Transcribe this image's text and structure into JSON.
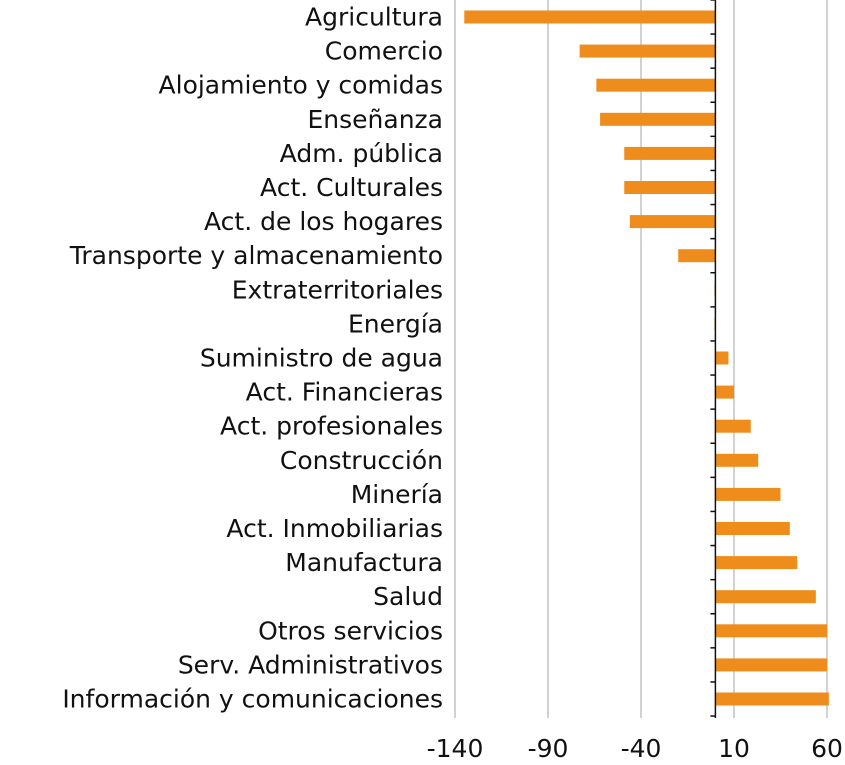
{
  "chart_data": {
    "type": "bar",
    "orientation": "horizontal",
    "title": "",
    "xlabel": "",
    "ylabel": "",
    "xlim": [
      -140,
      60
    ],
    "xticks": [
      -140,
      -90,
      -40,
      10,
      60
    ],
    "xtick_labels": [
      "-140",
      "-90",
      "-40",
      "10",
      "60"
    ],
    "grid": "vertical",
    "legend": "none",
    "bar_color": "#ee8c1c",
    "categories": [
      "Agricultura",
      "Comercio",
      "Alojamiento y comidas",
      "Enseñanza",
      "Adm. pública",
      "Act. Culturales",
      "Act. de los hogares",
      "Transporte y almacenamiento",
      "Extraterritoriales",
      "Energía",
      "Suministro de agua",
      "Act. Financieras",
      "Act. profesionales",
      "Construcción",
      "Minería",
      "Act. Inmobiliarias",
      "Manufactura",
      "Salud",
      "Otros servicios",
      "Serv. Administrativos",
      "Información y comunicaciones"
    ],
    "values": [
      -135,
      -73,
      -64,
      -62,
      -49,
      -49,
      -46,
      -20,
      -0.5,
      -0.5,
      7,
      10,
      19,
      23,
      35,
      40,
      44,
      54,
      60,
      60,
      61
    ]
  }
}
